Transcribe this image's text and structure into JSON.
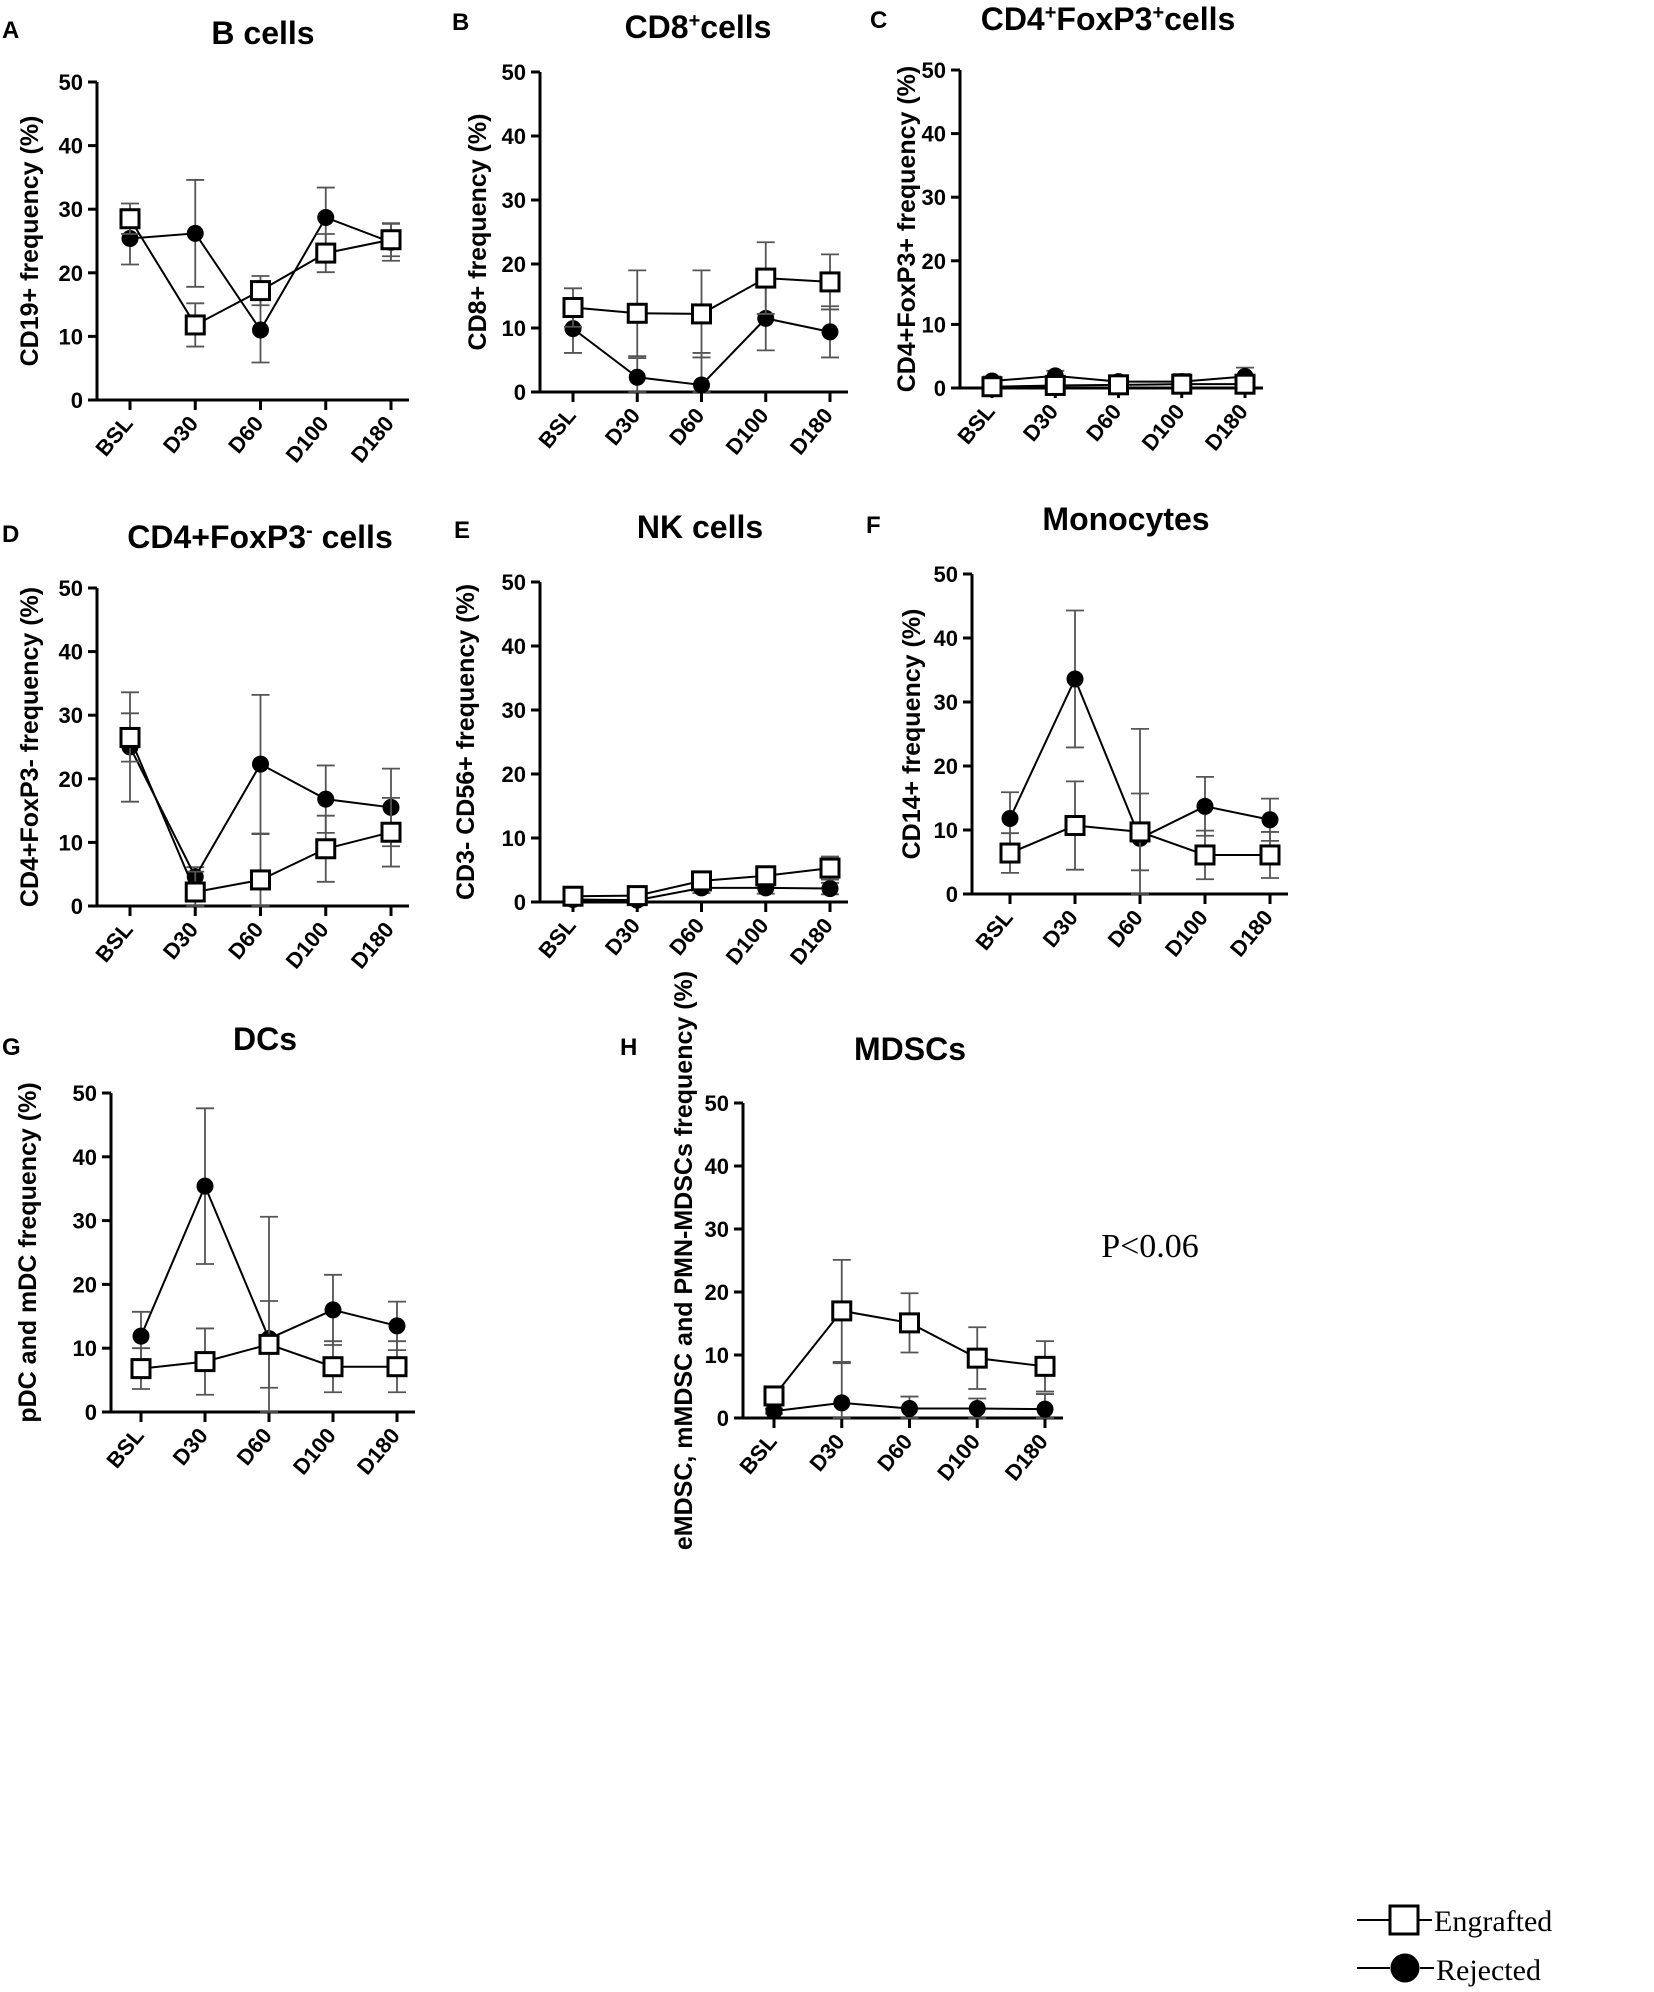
{
  "chart_data": [
    {
      "type": "line",
      "letter": "A",
      "title": "B cells",
      "title_sup": [],
      "ylabel": "CD19+ frequency (%)",
      "categories": [
        "BSL",
        "D30",
        "D60",
        "D100",
        "D180"
      ],
      "yticks": [
        0,
        10,
        20,
        30,
        40,
        50
      ],
      "ylim": [
        0,
        50
      ],
      "series": [
        {
          "name": "Engrafted",
          "values": [
            28.5,
            11.8,
            17.2,
            23.1,
            25.2
          ],
          "errors": [
            2.4,
            3.4,
            2.3,
            3.0,
            2.6
          ]
        },
        {
          "name": "Rejected",
          "values": [
            25.4,
            26.2,
            11.0,
            28.7,
            24.8
          ],
          "errors": [
            4.1,
            8.4,
            5.1,
            4.7,
            2.9
          ]
        }
      ],
      "annotation": ""
    },
    {
      "type": "line",
      "letter": "B",
      "title": "CD8+cells",
      "title_sup": [
        "+"
      ],
      "ylabel": "CD8+ frequency (%)",
      "categories": [
        "BSL",
        "D30",
        "D60",
        "D100",
        "D180"
      ],
      "yticks": [
        0,
        10,
        20,
        30,
        40,
        50
      ],
      "ylim": [
        0,
        50
      ],
      "series": [
        {
          "name": "Engrafted",
          "values": [
            13.2,
            12.3,
            12.2,
            17.8,
            17.2
          ],
          "errors": [
            3.0,
            6.7,
            6.8,
            5.6,
            4.3
          ]
        },
        {
          "name": "Rejected",
          "values": [
            9.9,
            2.3,
            1.1,
            11.5,
            9.4
          ],
          "errors": [
            3.8,
            3.0,
            5.0,
            5.0,
            4.0
          ]
        }
      ],
      "annotation": ""
    },
    {
      "type": "line",
      "letter": "C",
      "title": "CD4+FoxP3+cells",
      "title_sup": [
        "+",
        "+"
      ],
      "ylabel": "CD4+FoxP3+ frequency (%)",
      "categories": [
        "BSL",
        "D30",
        "D60",
        "D100",
        "D180"
      ],
      "yticks": [
        0,
        10,
        20,
        30,
        40,
        50
      ],
      "ylim": [
        0,
        50
      ],
      "series": [
        {
          "name": "Engrafted",
          "values": [
            0.2,
            0.4,
            0.5,
            0.6,
            0.6
          ],
          "errors": [
            0.4,
            0.6,
            0.5,
            0.8,
            0.9
          ]
        },
        {
          "name": "Rejected",
          "values": [
            1.1,
            1.9,
            1.0,
            1.0,
            1.8
          ],
          "errors": [
            0.7,
            0.8,
            0.6,
            1.2,
            1.4
          ]
        }
      ],
      "annotation": ""
    },
    {
      "type": "line",
      "letter": "D",
      "title": "CD4+FoxP3- cells",
      "title_sup": [
        "-"
      ],
      "ylabel": "CD4+FoxP3- frequency (%)",
      "categories": [
        "BSL",
        "D30",
        "D60",
        "D100",
        "D180"
      ],
      "yticks": [
        0,
        10,
        20,
        30,
        40,
        50
      ],
      "ylim": [
        0,
        50
      ],
      "series": [
        {
          "name": "Engrafted",
          "values": [
            26.5,
            2.2,
            4.1,
            9.0,
            11.6
          ],
          "errors": [
            3.8,
            3.2,
            7.2,
            5.2,
            5.4
          ]
        },
        {
          "name": "Rejected",
          "values": [
            25.0,
            4.6,
            22.3,
            16.8,
            15.5
          ],
          "errors": [
            8.6,
            1.5,
            10.9,
            5.3,
            6.1
          ]
        }
      ],
      "annotation": ""
    },
    {
      "type": "line",
      "letter": "E",
      "title": "NK cells",
      "title_sup": [],
      "ylabel": "CD3- CD56+ frequency (%)",
      "categories": [
        "BSL",
        "D30",
        "D60",
        "D100",
        "D180"
      ],
      "yticks": [
        0,
        10,
        20,
        30,
        40,
        50
      ],
      "ylim": [
        0,
        50
      ],
      "series": [
        {
          "name": "Engrafted",
          "values": [
            0.9,
            1.0,
            3.3,
            4.1,
            5.3
          ],
          "errors": [
            0.5,
            0.5,
            0.9,
            1.2,
            1.8
          ]
        },
        {
          "name": "Rejected",
          "values": [
            0.4,
            0.3,
            2.2,
            2.2,
            2.1
          ],
          "errors": [
            0.3,
            0.3,
            0.8,
            0.9,
            0.9
          ]
        }
      ],
      "annotation": ""
    },
    {
      "type": "line",
      "letter": "F",
      "title": "Monocytes",
      "title_sup": [],
      "ylabel": "CD14+ frequency (%)",
      "categories": [
        "BSL",
        "D30",
        "D60",
        "D100",
        "D180"
      ],
      "yticks": [
        0,
        10,
        20,
        30,
        40,
        50
      ],
      "ylim": [
        0,
        50
      ],
      "series": [
        {
          "name": "Engrafted",
          "values": [
            6.4,
            10.7,
            9.7,
            6.1,
            6.1
          ],
          "errors": [
            3.1,
            6.9,
            6.0,
            3.8,
            3.6
          ]
        },
        {
          "name": "Rejected",
          "values": [
            11.8,
            33.6,
            8.7,
            13.7,
            11.6
          ],
          "errors": [
            4.1,
            10.7,
            17.1,
            4.6,
            3.3
          ]
        }
      ],
      "annotation": ""
    },
    {
      "type": "line",
      "letter": "G",
      "title": "DCs",
      "title_sup": [],
      "ylabel": "pDC and mDC frequency (%)",
      "categories": [
        "BSL",
        "D30",
        "D60",
        "D100",
        "D180"
      ],
      "yticks": [
        0,
        10,
        20,
        30,
        40,
        50
      ],
      "ylim": [
        0,
        50
      ],
      "series": [
        {
          "name": "Engrafted",
          "values": [
            6.8,
            7.9,
            10.6,
            7.1,
            7.1
          ],
          "errors": [
            3.2,
            5.2,
            6.8,
            4.0,
            4.0
          ]
        },
        {
          "name": "Rejected",
          "values": [
            11.9,
            35.4,
            11.5,
            16.0,
            13.5
          ],
          "errors": [
            3.8,
            12.2,
            19.1,
            5.5,
            3.8
          ]
        }
      ],
      "annotation": ""
    },
    {
      "type": "line",
      "letter": "H",
      "title": "MDSCs",
      "title_sup": [],
      "ylabel": "eMDSC, mMDSC and PMN-MDSCs frequency (%)",
      "categories": [
        "BSL",
        "D30",
        "D60",
        "D100",
        "D180"
      ],
      "yticks": [
        0,
        10,
        20,
        30,
        40,
        50
      ],
      "ylim": [
        0,
        50
      ],
      "series": [
        {
          "name": "Engrafted",
          "values": [
            3.5,
            17.0,
            15.1,
            9.5,
            8.2
          ],
          "errors": [
            0.8,
            8.1,
            4.7,
            4.9,
            4.0
          ]
        },
        {
          "name": "Rejected",
          "values": [
            1.1,
            2.4,
            1.5,
            1.5,
            1.4
          ],
          "errors": [
            0.4,
            6.3,
            1.9,
            1.6,
            2.4
          ]
        }
      ],
      "annotation": "P<0.06"
    }
  ],
  "legend": [
    {
      "name": "Engrafted",
      "marker": "open-square"
    },
    {
      "name": "Rejected",
      "marker": "filled-circle"
    }
  ]
}
